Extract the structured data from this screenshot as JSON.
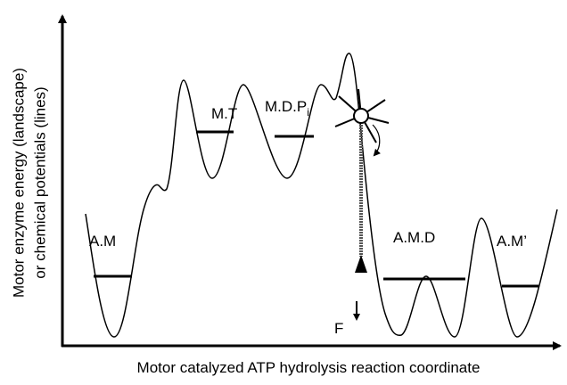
{
  "axes": {
    "y_label_line1": "Motor enzyme energy (landscape)",
    "y_label_line2": "or chemical potentials (lines)",
    "x_label": "Motor catalyzed ATP hydrolysis reaction coordinate"
  },
  "states": [
    {
      "label": "A.M"
    },
    {
      "label": "M.T"
    },
    {
      "label": "M.D.P",
      "subscript": "i"
    },
    {
      "label": "A.M.D"
    },
    {
      "label": "A.M’"
    }
  ],
  "force_label": "F"
}
